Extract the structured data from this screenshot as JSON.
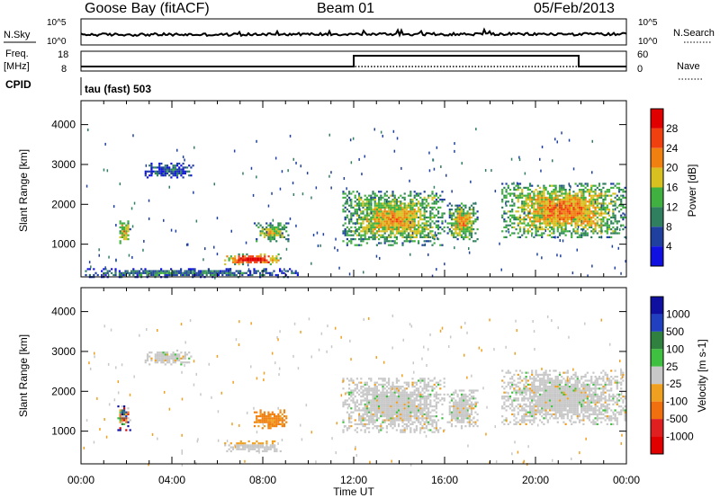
{
  "header": {
    "station": "Goose Bay (fitACF)",
    "beam": "Beam 01",
    "date": "05/Feb/2013"
  },
  "noise_panel": {
    "left_label": "N.Sky",
    "right_label": "N.Search",
    "left_ticks": [
      "10^5",
      "10^0"
    ],
    "right_ticks": [
      "10^5",
      "10^0"
    ]
  },
  "freq_panel": {
    "left_label_1": "Freq.",
    "left_label_2": "[MHz]",
    "right_label": "Nave",
    "left_ticks": [
      "18",
      "8"
    ],
    "right_ticks": [
      "60",
      "0"
    ]
  },
  "cpid": {
    "label": "CPID",
    "value": "tau (fast) 503"
  },
  "chart_data": [
    {
      "type": "heatmap",
      "name": "power",
      "ylabel": "Slant Range [km]",
      "ylim": [
        180,
        4600
      ],
      "yticks": [
        "1000",
        "2000",
        "3000",
        "4000"
      ],
      "colorbar_label": "Power [dB]",
      "colorbar_ticks": [
        "4",
        "8",
        "12",
        "16",
        "20",
        "24",
        "28"
      ],
      "colors": [
        "#1010e0",
        "#2040a0",
        "#308060",
        "#40b040",
        "#d8c020",
        "#f08010",
        "#f04010",
        "#e00000"
      ],
      "echo_regions": [
        {
          "t": [
            1.6,
            2.2
          ],
          "r": [
            1050,
            1700
          ],
          "level": 0.5
        },
        {
          "t": [
            2.8,
            5.0
          ],
          "r": [
            2700,
            3100
          ],
          "level": 0.2
        },
        {
          "t": [
            6.3,
            8.8
          ],
          "r": [
            520,
            820
          ],
          "level": 0.8
        },
        {
          "t": [
            7.6,
            9.2
          ],
          "r": [
            1100,
            1600
          ],
          "level": 0.45
        },
        {
          "t": [
            0.0,
            9.6
          ],
          "r": [
            200,
            450
          ],
          "level": 0.25
        },
        {
          "t": [
            11.5,
            16.0
          ],
          "r": [
            1000,
            2400
          ],
          "level": 0.5
        },
        {
          "t": [
            16.1,
            17.5
          ],
          "r": [
            1100,
            2100
          ],
          "level": 0.5
        },
        {
          "t": [
            18.5,
            24.0
          ],
          "r": [
            1200,
            2600
          ],
          "level": 0.55
        }
      ]
    },
    {
      "type": "heatmap",
      "name": "velocity",
      "ylabel": "Slant Range [km]",
      "ylim": [
        180,
        4600
      ],
      "yticks": [
        "1000",
        "2000",
        "3000",
        "4000"
      ],
      "colorbar_label": "Velocity [m s-1]",
      "colorbar_ticks": [
        "1000",
        "500",
        "100",
        "25",
        "-25",
        "-100",
        "-500",
        "-1000"
      ],
      "colors": [
        "#1010a0",
        "#2040c0",
        "#308040",
        "#40c040",
        "#c8c8c8",
        "#f0a020",
        "#f07010",
        "#e02020",
        "#e00000"
      ],
      "echo_regions": [
        {
          "t": [
            1.6,
            2.2
          ],
          "r": [
            1050,
            1700
          ],
          "kind": "mixed"
        },
        {
          "t": [
            2.8,
            5.0
          ],
          "r": [
            2700,
            3100
          ],
          "kind": "grey"
        },
        {
          "t": [
            6.3,
            8.8
          ],
          "r": [
            520,
            820
          ],
          "kind": "grey-orange"
        },
        {
          "t": [
            7.6,
            9.2
          ],
          "r": [
            1100,
            1600
          ],
          "kind": "orange"
        },
        {
          "t": [
            11.5,
            16.0
          ],
          "r": [
            1000,
            2400
          ],
          "kind": "grey"
        },
        {
          "t": [
            16.1,
            17.5
          ],
          "r": [
            1100,
            2100
          ],
          "kind": "grey"
        },
        {
          "t": [
            18.5,
            24.0
          ],
          "r": [
            1200,
            2600
          ],
          "kind": "grey"
        }
      ]
    }
  ],
  "x_axis": {
    "label": "Time UT",
    "ticks": [
      "00:00",
      "04:00",
      "08:00",
      "12:00",
      "16:00",
      "20:00",
      "00:00"
    ],
    "range_hours": [
      0,
      24
    ]
  },
  "freq_series": {
    "freq_mhz": [
      {
        "t0": 0,
        "t1": 12,
        "v": 8
      },
      {
        "t0": 12,
        "t1": 21.9,
        "v": 18
      },
      {
        "t0": 21.9,
        "t1": 24,
        "v": 8
      }
    ]
  }
}
